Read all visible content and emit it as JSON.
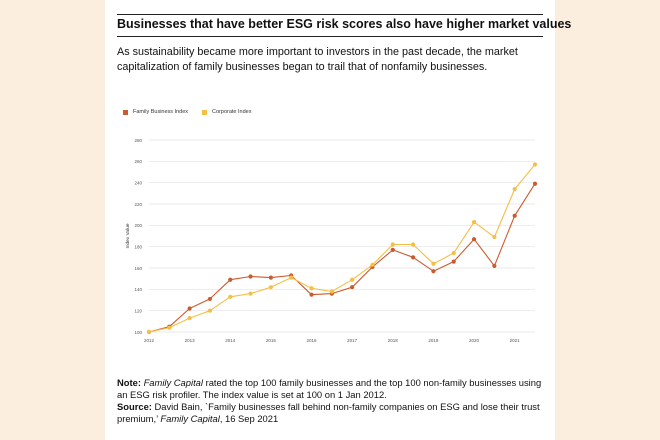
{
  "title": "Businesses that have better ESG risk scores also have higher market values",
  "subtitle": "As sustainability became more important to investors in the past decade, the market capitalization of family businesses began to trail that of nonfamily businesses.",
  "colors": {
    "family": "#cc5a2e",
    "corporate": "#f5bf45",
    "grid": "#e3e3e3",
    "background": "#fbeede"
  },
  "note": {
    "label": "Note:",
    "italic_lead": "Family Capital",
    "text": " rated the top 100 family businesses and the top 100 non-family businesses using an ESG risk profiler. The index value is set at 100 on 1 Jan 2012."
  },
  "source": {
    "label": "Source:",
    "text": " David Bain, `Family businesses fall behind non-family companies on ESG and lose their trust premium,’ ",
    "italic_tail": "Family Capital",
    "date": ", 16 Sep 2021"
  },
  "chart_data": {
    "type": "line",
    "ylabel": "Index Value",
    "ylim": [
      100,
      280
    ],
    "yticks": [
      100,
      120,
      140,
      160,
      180,
      200,
      220,
      240,
      260,
      280
    ],
    "xlim": [
      2012,
      2021.5
    ],
    "xticks": [
      "2012",
      "2013",
      "2014",
      "2015",
      "2016",
      "2017",
      "2018",
      "2019",
      "2020",
      "2021"
    ],
    "grid": true,
    "legend": "top-left",
    "series": [
      {
        "name": "Family Business Index",
        "color": "#cc5a2e",
        "x": [
          2012,
          2012.5,
          2013,
          2013.5,
          2014,
          2014.5,
          2015,
          2015.5,
          2016,
          2016.5,
          2017,
          2017.5,
          2018,
          2018.5,
          2019,
          2019.5,
          2020,
          2020.5,
          2021,
          2021.5
        ],
        "y": [
          100,
          105,
          122,
          131,
          149,
          152,
          151,
          153,
          135,
          136,
          142,
          161,
          177,
          170,
          157,
          166,
          187,
          162,
          209,
          239
        ]
      },
      {
        "name": "Corporate Index",
        "color": "#f5bf45",
        "x": [
          2012,
          2012.5,
          2013,
          2013.5,
          2014,
          2014.5,
          2015,
          2015.5,
          2016,
          2016.5,
          2017,
          2017.5,
          2018,
          2018.5,
          2019,
          2019.5,
          2020,
          2020.5,
          2021,
          2021.5
        ],
        "y": [
          100,
          104,
          113,
          120,
          133,
          136,
          142,
          151,
          141,
          138,
          149,
          163,
          182,
          182,
          164,
          174,
          203,
          189,
          234,
          257
        ]
      }
    ]
  }
}
